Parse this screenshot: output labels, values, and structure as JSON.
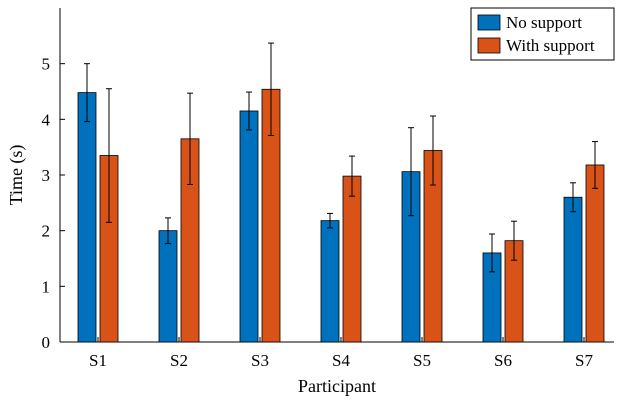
{
  "chart_data": {
    "type": "bar",
    "title": "",
    "xlabel": "Participant",
    "ylabel": "Time (s)",
    "ylim": [
      0,
      6
    ],
    "yticks": [
      0,
      1,
      2,
      3,
      4,
      5
    ],
    "categories": [
      "S1",
      "S2",
      "S3",
      "S4",
      "S5",
      "S6",
      "S7"
    ],
    "legend_position": "top-right",
    "series": [
      {
        "name": "No support",
        "color": "#0072BD",
        "values": [
          4.48,
          2.0,
          4.15,
          2.18,
          3.06,
          1.6,
          2.6
        ],
        "errors": [
          0.52,
          0.23,
          0.34,
          0.13,
          0.79,
          0.34,
          0.26
        ]
      },
      {
        "name": "With support",
        "color": "#D95319",
        "values": [
          3.35,
          3.65,
          4.54,
          2.98,
          3.44,
          1.82,
          3.18
        ],
        "errors": [
          1.2,
          0.82,
          0.83,
          0.36,
          0.62,
          0.35,
          0.42
        ]
      }
    ]
  }
}
